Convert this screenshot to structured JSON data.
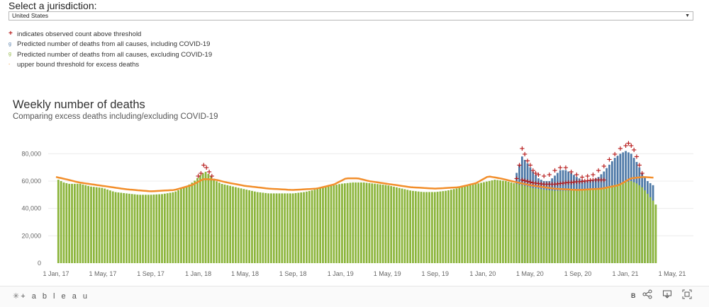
{
  "jurisdiction": {
    "label": "Select a jurisdiction:",
    "selected": "United States"
  },
  "legend": {
    "items": [
      {
        "symbol": "+",
        "text": "indicates observed count above threshold",
        "color": "#b71c1c"
      },
      {
        "symbol": "g",
        "text": "Predicted number of deaths from all causes, including COVID-19",
        "color": "#4e79a7"
      },
      {
        "symbol": "g",
        "text": "Predicted number of deaths from all causes, excluding COVID-19",
        "color": "#8cb53c"
      },
      {
        "symbol": "-",
        "text": "upper bound threshold for excess deaths",
        "color": "#f28e2b"
      }
    ]
  },
  "footer": {
    "logo": "+ a b l e a u",
    "b_label": "B"
  },
  "chart_data": {
    "type": "bar",
    "title": "Weekly number of deaths",
    "subtitle": "Comparing excess deaths including/excluding COVID-19",
    "xlabel": "",
    "ylabel": "",
    "ylim": [
      0,
      90000
    ],
    "yticks": [
      "0",
      "20,000",
      "40,000",
      "60,000",
      "80,000"
    ],
    "ytick_values": [
      0,
      20000,
      40000,
      60000,
      80000
    ],
    "xticks": [
      "1 Jan, 17",
      "1 May, 17",
      "1 Sep, 17",
      "1 Jan, 18",
      "1 May, 18",
      "1 Sep, 18",
      "1 Jan, 19",
      "1 May, 19",
      "1 Sep, 19",
      "1 Jan, 20",
      "1 May, 20",
      "1 Sep, 20",
      "1 Jan, 21",
      "1 May, 21"
    ],
    "xtick_dates": [
      "2017-01-01",
      "2017-05-01",
      "2017-09-01",
      "2018-01-01",
      "2018-05-01",
      "2018-09-01",
      "2019-01-01",
      "2019-05-01",
      "2019-09-01",
      "2020-01-01",
      "2020-05-01",
      "2020-09-01",
      "2021-01-01",
      "2021-05-01"
    ],
    "grid": true,
    "colors": {
      "including_covid": "#4e79a7",
      "excluding_covid": "#8cb53c",
      "threshold": "#f28e2b",
      "above_marker": "#b71c1c"
    },
    "series": [
      {
        "name": "Predicted number of deaths from all causes, including COVID-19",
        "dates": [
          "2020-03-28",
          "2020-04-11",
          "2020-04-25",
          "2020-05-09",
          "2020-05-23",
          "2020-06-06",
          "2020-06-20",
          "2020-07-04",
          "2020-07-18",
          "2020-08-01",
          "2020-08-15",
          "2020-08-29",
          "2020-09-12",
          "2020-09-26",
          "2020-10-10",
          "2020-10-24",
          "2020-11-07",
          "2020-11-21",
          "2020-12-05",
          "2020-12-19",
          "2021-01-02",
          "2021-01-16",
          "2021-01-30",
          "2021-02-13",
          "2021-02-27",
          "2021-03-13"
        ],
        "values": [
          66000,
          78000,
          73000,
          67000,
          62000,
          60000,
          60000,
          64000,
          68000,
          68000,
          66000,
          63000,
          61000,
          60000,
          61000,
          63000,
          67000,
          72000,
          77000,
          80000,
          82000,
          80000,
          74000,
          66000,
          60000,
          57000
        ]
      },
      {
        "name": "Predicted number of deaths from all causes, excluding COVID-19",
        "dates": [
          "2017-01-07",
          "2017-01-21",
          "2017-02-04",
          "2017-02-18",
          "2017-03-04",
          "2017-04-01",
          "2017-05-01",
          "2017-06-01",
          "2017-07-01",
          "2017-08-01",
          "2017-09-01",
          "2017-10-01",
          "2017-11-01",
          "2017-12-01",
          "2017-12-22",
          "2018-01-05",
          "2018-01-19",
          "2018-02-02",
          "2018-02-16",
          "2018-03-02",
          "2018-04-01",
          "2018-05-01",
          "2018-06-01",
          "2018-07-01",
          "2018-08-01",
          "2018-09-01",
          "2018-10-01",
          "2018-11-01",
          "2018-12-01",
          "2019-01-01",
          "2019-02-01",
          "2019-03-01",
          "2019-04-01",
          "2019-05-01",
          "2019-06-01",
          "2019-07-01",
          "2019-08-01",
          "2019-09-01",
          "2019-10-01",
          "2019-11-01",
          "2019-12-01",
          "2020-01-01",
          "2020-02-01",
          "2020-03-01",
          "2020-03-28",
          "2020-04-11",
          "2020-04-25",
          "2020-05-09",
          "2020-06-01",
          "2020-07-01",
          "2020-08-01",
          "2020-09-01",
          "2020-10-01",
          "2020-11-01",
          "2020-12-01",
          "2020-12-31",
          "2021-01-16",
          "2021-02-01",
          "2021-02-15",
          "2021-03-01",
          "2021-03-15",
          "2021-03-22"
        ],
        "values": [
          61000,
          59000,
          58000,
          58000,
          58000,
          56000,
          55000,
          52000,
          51000,
          50000,
          50000,
          50500,
          52000,
          56000,
          60000,
          64000,
          67000,
          64000,
          60000,
          58000,
          56000,
          54000,
          52000,
          51000,
          51000,
          51000,
          52000,
          54000,
          56000,
          58000,
          59000,
          59000,
          58000,
          57000,
          55000,
          53000,
          52000,
          52000,
          53000,
          55000,
          57000,
          59000,
          61000,
          60000,
          58000,
          57000,
          56000,
          55000,
          54000,
          53000,
          53000,
          53000,
          54000,
          55000,
          57000,
          59000,
          60000,
          58000,
          55000,
          50000,
          45000,
          42000
        ]
      }
    ],
    "threshold": {
      "name": "upper bound threshold for excess deaths",
      "dates": [
        "2017-01-01",
        "2017-02-01",
        "2017-03-01",
        "2017-05-01",
        "2017-07-01",
        "2017-09-01",
        "2017-11-01",
        "2017-12-15",
        "2018-01-15",
        "2018-02-15",
        "2018-03-15",
        "2018-05-01",
        "2018-07-01",
        "2018-09-01",
        "2018-11-01",
        "2018-12-15",
        "2019-01-15",
        "2019-02-15",
        "2019-03-15",
        "2019-05-01",
        "2019-07-01",
        "2019-09-01",
        "2019-11-01",
        "2019-12-15",
        "2020-01-15",
        "2020-02-15",
        "2020-03-15",
        "2020-05-01",
        "2020-07-01",
        "2020-09-01",
        "2020-11-01",
        "2020-12-15",
        "2021-01-15",
        "2021-02-15",
        "2021-03-15"
      ],
      "values": [
        63000,
        61000,
        59000,
        56500,
        54000,
        52500,
        53500,
        57000,
        61500,
        61000,
        59000,
        56500,
        54500,
        53500,
        54500,
        57500,
        62000,
        62000,
        60000,
        58000,
        55500,
        54500,
        55500,
        58500,
        63500,
        62000,
        60000,
        57000,
        54500,
        53500,
        54500,
        57000,
        62000,
        63000,
        62500
      ]
    },
    "above_threshold": {
      "name": "indicates observed count above threshold",
      "dates": [
        "2018-01-01",
        "2018-01-08",
        "2018-01-15",
        "2018-01-22",
        "2018-01-29",
        "2018-02-05",
        "2020-03-28",
        "2020-04-04",
        "2020-04-11",
        "2020-04-18",
        "2020-04-25",
        "2020-05-02",
        "2020-05-09",
        "2020-05-16",
        "2020-05-23",
        "2020-06-06",
        "2020-06-20",
        "2020-07-04",
        "2020-07-18",
        "2020-08-01",
        "2020-08-15",
        "2020-08-29",
        "2020-09-12",
        "2020-09-26",
        "2020-10-10",
        "2020-10-24",
        "2020-11-07",
        "2020-11-21",
        "2020-12-05",
        "2020-12-19",
        "2021-01-02",
        "2021-01-09",
        "2021-01-16",
        "2021-01-23",
        "2021-01-30",
        "2021-02-06",
        "2021-02-13"
      ],
      "values": [
        64000,
        66000,
        72000,
        70000,
        67000,
        64000,
        62000,
        72000,
        84000,
        80000,
        75000,
        72000,
        68000,
        66000,
        65000,
        64000,
        65000,
        68000,
        70000,
        70000,
        67000,
        65000,
        63000,
        64000,
        65000,
        68000,
        71000,
        76000,
        80000,
        84000,
        86000,
        88000,
        86000,
        83000,
        78000,
        72000,
        66000
      ]
    },
    "above_threshold_lower": {
      "dates": [
        "2020-04-11",
        "2020-05-09",
        "2020-06-06",
        "2020-07-04",
        "2020-08-01",
        "2020-09-12",
        "2020-10-10",
        "2020-11-07"
      ],
      "values": [
        61000,
        59000,
        58000,
        58000,
        59000,
        60000,
        61000,
        61000
      ]
    }
  }
}
